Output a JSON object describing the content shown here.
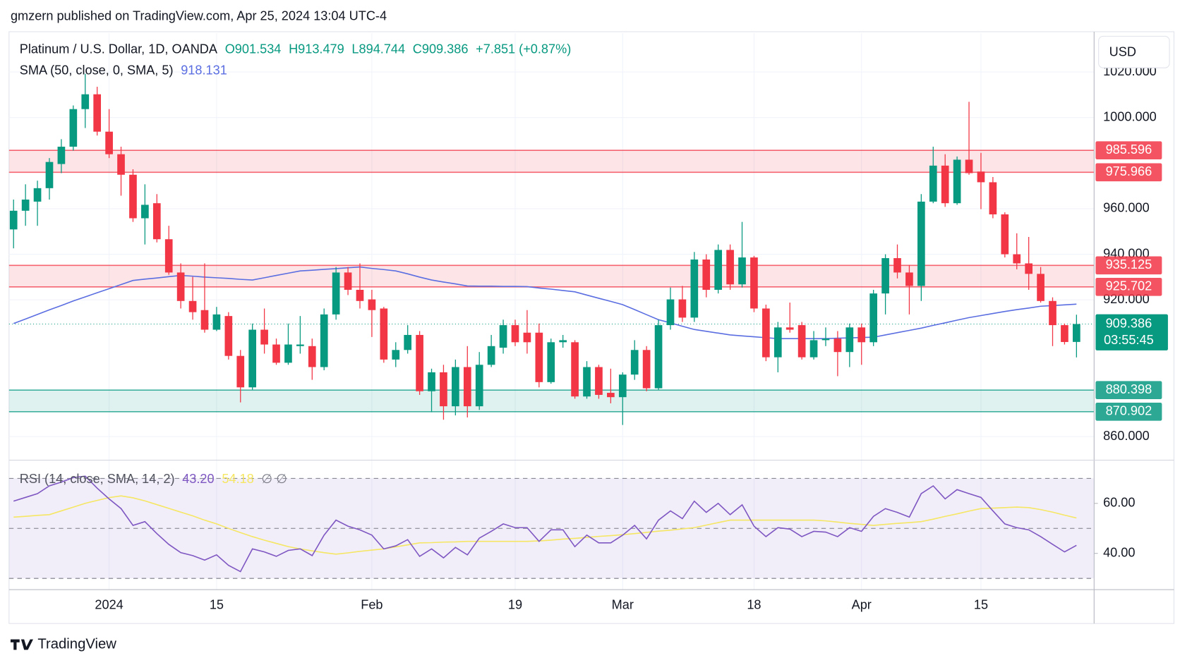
{
  "header": "gmzern published on TradingView.com, Apr 25, 2024 13:04 UTC-4",
  "footer": "TradingView",
  "chart_data": [
    {
      "type": "candlestick",
      "legend_title": "Platinum / U.S. Dollar, 1D, OANDA",
      "ohlc_legend": [
        "O901.534",
        "H913.479",
        "L894.744",
        "C909.386"
      ],
      "change_label": "+7.851 (+0.87%)",
      "currency": "USD",
      "countdown": "03:55:45",
      "up_color": "#089981",
      "down_color": "#f23645",
      "open": [
        950.9,
        959.1,
        963.1,
        969.0,
        979.6,
        987.2,
        1003.7,
        1010.2,
        993.8,
        983.9,
        974.9,
        955.8,
        962.4,
        946.6,
        932.0,
        919.5,
        915.5,
        906.9,
        912.9,
        895.4,
        881.6,
        906.9,
        900.4,
        892.4,
        899.7,
        899.7,
        890.5,
        913.6,
        932.0,
        924.4,
        920.2,
        916.2,
        893.8,
        898.0,
        904.6,
        879.9,
        888.2,
        873.3,
        890.5,
        873.3,
        891.5,
        899.0,
        908.9,
        905.6,
        905.6,
        883.9,
        901.4,
        901.4,
        877.6,
        890.5,
        879.2,
        877.3,
        887.2,
        898.0,
        881.2,
        908.9,
        920.2,
        912.2,
        937.7,
        924.4,
        941.9,
        926.8,
        938.6,
        916.2,
        894.8,
        907.9,
        908.9,
        894.8,
        902.3,
        903.0,
        897.1,
        907.9,
        901.4,
        922.8,
        938.3,
        932.0,
        926.1,
        963.1,
        978.9,
        962.4,
        981.5,
        976.3,
        971.6,
        957.5,
        940.0,
        936.0,
        931.4,
        919.5,
        908.9,
        901.534
      ],
      "high": [
        964.0,
        970.7,
        972.3,
        982.2,
        990.5,
        1005.3,
        1019.2,
        1013.5,
        1003.7,
        987.2,
        977.3,
        970.7,
        966.4,
        952.5,
        936.0,
        930.1,
        936.0,
        916.9,
        914.6,
        898.0,
        909.6,
        916.2,
        903.0,
        909.6,
        912.9,
        903.0,
        916.2,
        934.4,
        934.4,
        936.0,
        924.4,
        916.9,
        901.4,
        908.9,
        906.3,
        889.8,
        891.5,
        893.8,
        899.7,
        897.1,
        904.6,
        911.3,
        911.3,
        915.5,
        909.6,
        903.0,
        904.6,
        902.3,
        893.1,
        891.5,
        889.8,
        888.2,
        902.3,
        899.7,
        911.3,
        925.4,
        926.1,
        941.0,
        940.0,
        944.3,
        944.3,
        954.2,
        939.3,
        917.9,
        910.3,
        918.8,
        910.3,
        906.3,
        907.9,
        906.3,
        909.6,
        909.6,
        924.4,
        940.0,
        944.3,
        935.3,
        966.4,
        987.2,
        983.9,
        982.9,
        1006.9,
        984.5,
        973.9,
        958.4,
        949.2,
        947.6,
        934.4,
        921.1,
        909.6,
        913.479
      ],
      "low": [
        942.6,
        952.5,
        952.5,
        964.0,
        975.6,
        985.5,
        995.4,
        992.1,
        982.2,
        965.7,
        954.2,
        944.3,
        945.2,
        931.0,
        916.2,
        911.3,
        905.6,
        906.3,
        893.8,
        875.0,
        880.6,
        896.4,
        891.5,
        891.5,
        896.4,
        884.9,
        889.1,
        911.3,
        922.1,
        916.2,
        903.7,
        892.4,
        890.5,
        896.4,
        878.3,
        870.7,
        867.4,
        869.3,
        868.4,
        871.7,
        890.5,
        896.4,
        899.7,
        896.4,
        881.6,
        883.2,
        899.0,
        876.6,
        876.6,
        876.6,
        874.6,
        865.1,
        884.9,
        879.9,
        880.6,
        906.9,
        910.3,
        910.3,
        921.1,
        922.8,
        924.4,
        925.4,
        914.6,
        893.1,
        888.2,
        905.6,
        893.8,
        893.8,
        899.7,
        886.5,
        890.5,
        891.5,
        899.7,
        913.6,
        929.4,
        913.6,
        919.5,
        962.4,
        960.8,
        961.7,
        974.9,
        959.8,
        955.8,
        938.6,
        933.4,
        924.4,
        918.8,
        899.7,
        900.4,
        894.744
      ],
      "close": [
        959.1,
        964.0,
        969.0,
        980.5,
        987.2,
        1003.7,
        1010.2,
        993.8,
        983.9,
        974.9,
        955.8,
        961.7,
        946.6,
        932.0,
        919.5,
        914.6,
        906.9,
        913.6,
        895.4,
        881.6,
        906.9,
        900.4,
        892.4,
        900.4,
        900.4,
        890.5,
        913.6,
        932.0,
        924.4,
        919.5,
        915.5,
        893.8,
        898.0,
        904.6,
        879.9,
        888.2,
        873.3,
        890.5,
        873.3,
        891.5,
        899.7,
        908.9,
        901.4,
        901.4,
        883.9,
        901.4,
        902.3,
        877.6,
        890.5,
        878.3,
        877.3,
        887.2,
        898.0,
        881.2,
        908.9,
        920.2,
        912.2,
        937.7,
        924.4,
        941.9,
        926.8,
        938.6,
        916.2,
        894.8,
        907.9,
        906.9,
        894.8,
        902.3,
        903.0,
        897.1,
        907.9,
        901.4,
        922.8,
        938.3,
        932.0,
        926.1,
        963.1,
        978.9,
        962.4,
        981.5,
        975.6,
        971.6,
        957.5,
        940.0,
        936.0,
        931.4,
        919.5,
        908.9,
        901.5,
        909.386
      ],
      "sma": {
        "label": "SMA (50, close, 0, SMA, 5)",
        "color": "#5b6ee1",
        "values": [
          909.6,
          911.6,
          913.6,
          915.6,
          917.5,
          919.5,
          921.3,
          923.1,
          924.9,
          926.7,
          928.5,
          929.1,
          929.6,
          930.2,
          930.7,
          930.4,
          930.0,
          929.7,
          929.4,
          929.0,
          928.7,
          929.7,
          930.7,
          931.7,
          932.7,
          933.0,
          933.4,
          933.7,
          934.1,
          934.4,
          933.8,
          933.3,
          932.7,
          931.4,
          930.0,
          928.7,
          927.8,
          927.0,
          926.1,
          926.0,
          926.0,
          925.9,
          925.9,
          925.8,
          925.2,
          924.7,
          924.1,
          923.5,
          922.1,
          920.7,
          919.3,
          917.9,
          915.7,
          913.5,
          911.3,
          909.9,
          908.4,
          907.0,
          906.2,
          905.4,
          904.6,
          904.2,
          903.8,
          903.4,
          903.0,
          903.0,
          903.0,
          903.0,
          903.0,
          903.2,
          903.3,
          903.5,
          903.6,
          904.6,
          905.6,
          906.6,
          907.6,
          908.8,
          909.9,
          911.1,
          912.2,
          913.1,
          914.0,
          914.9,
          915.7,
          916.4,
          917.2,
          917.5,
          917.8,
          918.131
        ]
      },
      "zones": [
        {
          "from": 975.966,
          "to": 985.596,
          "color": "#f23645"
        },
        {
          "from": 925.702,
          "to": 935.125,
          "color": "#f23645"
        },
        {
          "from": 870.902,
          "to": 880.398,
          "color": "#089981"
        }
      ],
      "ylim": [
        850,
        1037
      ],
      "yticks": [
        {
          "value": 860,
          "label": "860.000"
        },
        {
          "value": 920,
          "label": "920.000"
        },
        {
          "value": 940,
          "label": "940.000"
        },
        {
          "value": 960,
          "label": "960.000"
        },
        {
          "value": 1000,
          "label": "1000.000"
        },
        {
          "value": 1020,
          "label": "1020.000"
        }
      ],
      "xticks": [
        {
          "value": 8,
          "label": "2024"
        },
        {
          "value": 17,
          "label": "15"
        },
        {
          "value": 30,
          "label": "Feb"
        },
        {
          "value": 42,
          "label": "19"
        },
        {
          "value": 51,
          "label": "Mar"
        },
        {
          "value": 62,
          "label": "18"
        },
        {
          "value": 71,
          "label": "Apr"
        },
        {
          "value": 81,
          "label": "15"
        }
      ],
      "grid": true
    },
    {
      "type": "line",
      "label": "RSI (14, close, SMA, 14, 2)",
      "flags": "∅ ∅",
      "bands": [
        70,
        50,
        30
      ],
      "band_color": "#7e57c2",
      "ylim": [
        25.5,
        77
      ],
      "yticks": [
        {
          "value": 40,
          "label": "40.00"
        },
        {
          "value": 60,
          "label": "60.00"
        }
      ],
      "series": [
        {
          "color": "#7e57c2",
          "last_label": "43.20",
          "values": [
            60.9,
            62.4,
            63.9,
            67.0,
            68.5,
            70.3,
            70.9,
            66.1,
            61.8,
            57.9,
            51.2,
            52.7,
            47.9,
            43.6,
            40.3,
            39.1,
            37.3,
            39.4,
            35.2,
            32.7,
            41.8,
            40.6,
            38.8,
            41.2,
            41.8,
            39.1,
            47.3,
            53.3,
            50.9,
            49.4,
            47.3,
            41.8,
            43.0,
            45.5,
            38.8,
            41.8,
            38.2,
            42.4,
            39.4,
            46.1,
            48.8,
            51.8,
            50.3,
            50.3,
            44.8,
            49.4,
            49.4,
            42.7,
            47.3,
            44.2,
            44.2,
            47.3,
            51.2,
            45.8,
            53.3,
            57.0,
            53.9,
            60.9,
            56.4,
            60.0,
            55.5,
            59.4,
            50.9,
            46.7,
            50.3,
            49.7,
            46.7,
            48.8,
            48.5,
            46.7,
            50.3,
            48.8,
            54.8,
            57.9,
            56.4,
            54.5,
            63.9,
            67.0,
            61.8,
            65.5,
            63.9,
            62.4,
            57.0,
            51.8,
            50.3,
            49.4,
            46.7,
            43.6,
            40.6,
            43.2
          ]
        },
        {
          "color": "#f5e663",
          "last_label": "54.18",
          "values": [
            54.5,
            54.8,
            55.2,
            55.5,
            57.0,
            58.5,
            60.0,
            61.2,
            62.3,
            63.0,
            62.2,
            61.0,
            59.5,
            58.0,
            56.5,
            55.0,
            53.3,
            51.8,
            50.0,
            48.3,
            46.7,
            45.3,
            44.0,
            42.7,
            41.8,
            41.0,
            40.3,
            39.7,
            40.2,
            40.8,
            41.3,
            41.8,
            42.6,
            43.4,
            44.2,
            44.3,
            44.5,
            44.6,
            44.8,
            44.8,
            44.8,
            44.8,
            44.8,
            44.8,
            45.0,
            45.3,
            45.7,
            46.0,
            46.4,
            46.8,
            47.1,
            47.5,
            47.9,
            48.4,
            48.9,
            49.3,
            49.8,
            50.3,
            51.3,
            52.3,
            53.3,
            53.3,
            53.3,
            53.3,
            53.3,
            53.3,
            53.3,
            53.3,
            53.0,
            52.5,
            52.0,
            51.6,
            51.2,
            51.6,
            52.0,
            52.3,
            52.7,
            53.7,
            54.8,
            55.8,
            56.9,
            57.9,
            58.1,
            58.3,
            58.5,
            58.3,
            57.5,
            56.5,
            55.3,
            54.18
          ]
        }
      ]
    }
  ]
}
